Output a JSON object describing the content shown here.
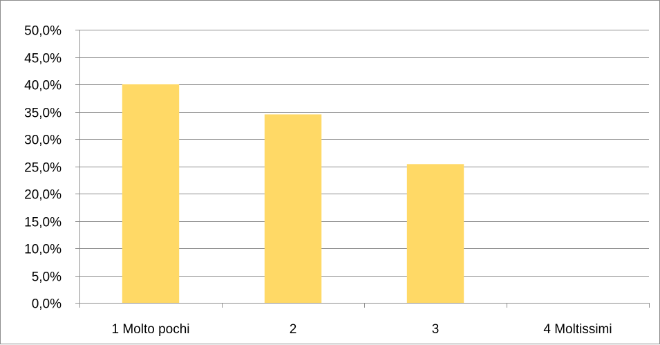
{
  "chart_data": {
    "type": "bar",
    "categories": [
      "1 Molto pochi",
      "2",
      "3",
      "4 Moltissimi"
    ],
    "values": [
      40.0,
      34.5,
      25.4,
      0.0
    ],
    "ylim": [
      0,
      50
    ],
    "ytick_step": 5,
    "ytick_labels": [
      "0,0%",
      "5,0%",
      "10,0%",
      "15,0%",
      "20,0%",
      "25,0%",
      "30,0%",
      "35,0%",
      "40,0%",
      "45,0%",
      "50,0%"
    ],
    "grid": true,
    "legend": "none",
    "bar_color": "#FFD966",
    "grid_color": "#8C8C8C"
  }
}
